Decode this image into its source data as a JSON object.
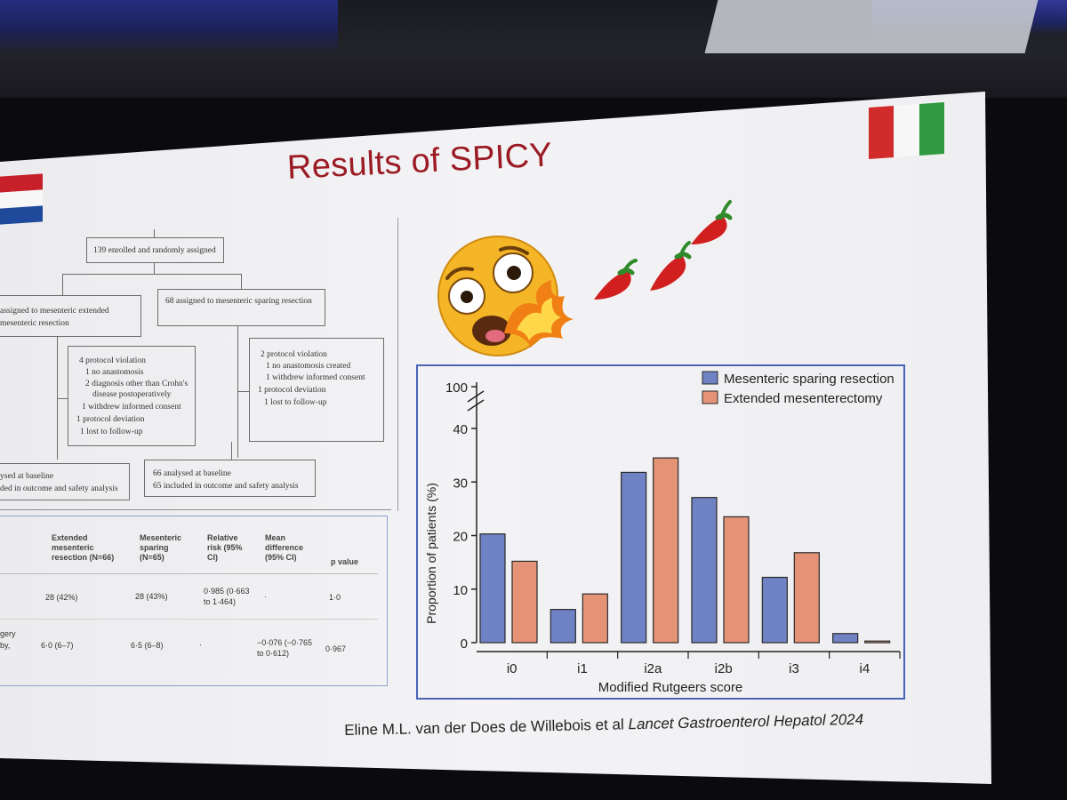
{
  "slide": {
    "title": "Results of SPICY",
    "citation_authors": "Eline M.L. van der Does de Willebois et al ",
    "citation_journal": "Lancet Gastroenterol Hepatol 2024"
  },
  "flowchart": {
    "enrolled": "139 enrolled and randomly assigned",
    "left_arm_line1": "assigned to mesenteric extended",
    "left_arm_line2": "mesenteric resection",
    "right_arm": "68 assigned to mesenteric sparing resection",
    "left_excl": [
      "4 protocol violation",
      "1 no anastomosis",
      "2 diagnosis other than Crohn's",
      "disease postoperatively",
      "1 withdrew informed consent",
      "1 protocol deviation",
      "1 lost to follow-up"
    ],
    "right_excl": [
      "2 protocol violation",
      "1 no anastomosis created",
      "1 withdrew informed consent",
      "1 protocol deviation",
      "1 lost to follow-up"
    ],
    "left_analysed_line1": "ysed at baseline",
    "left_analysed_line2": "ded in outcome and safety analysis",
    "right_analysed_line1": "66 analysed at baseline",
    "right_analysed_line2": "65 included in outcome and safety analysis"
  },
  "table": {
    "headers": [
      [
        "Extended",
        "mesenteric",
        "resection (N=66)"
      ],
      [
        "Mesenteric",
        "sparing",
        "(N=65)"
      ],
      [
        "Relative",
        "risk (95%",
        "CI)"
      ],
      [
        "Mean",
        "difference",
        "(95% CI)"
      ],
      [
        "p value"
      ]
    ],
    "row1": {
      "extended": "28 (42%)",
      "sparing": "28 (43%)",
      "rr_line1": "0·985 (0·663",
      "rr_line2": "to 1·464)",
      "md": "·",
      "p": "1·0"
    },
    "row2": {
      "label_line1": "gery",
      "label_line2": "by,",
      "extended": "6·0 (6–7)",
      "sparing": "6·5 (6–8)",
      "rr": "·",
      "md_line1": "−0·076 (−0·765",
      "md_line2": "to 0·612)",
      "p": "0·967"
    }
  },
  "chart_data": {
    "type": "bar",
    "categories": [
      "i0",
      "i1",
      "i2a",
      "i2b",
      "i3",
      "i4"
    ],
    "series": [
      {
        "name": "Mesenteric sparing resection",
        "values": [
          20.3,
          6.2,
          31.8,
          27.1,
          12.2,
          1.7
        ],
        "color": "#6f82c4"
      },
      {
        "name": "Extended mesenterectomy",
        "values": [
          15.2,
          9.1,
          34.5,
          23.5,
          16.8,
          0.3
        ],
        "color": "#e49377"
      }
    ],
    "ylim": [
      0,
      40
    ],
    "yticks": [
      "0",
      "10",
      "20",
      "30",
      "40",
      "100"
    ],
    "axis_break": true,
    "xlabel": "Modified Rutgeers score",
    "ylabel": "Proportion of patients (%)",
    "legend_position": "top-right"
  },
  "decorations": {
    "flags": [
      "netherlands-flag",
      "italy-flag"
    ],
    "icons": [
      "scared-face-emoji",
      "fire-icon",
      "chili-pepper-icon"
    ]
  }
}
